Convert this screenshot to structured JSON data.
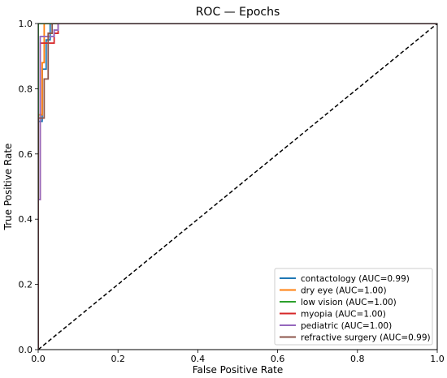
{
  "chart_data": {
    "type": "line",
    "title": "ROC — Epochs",
    "xlabel": "False Positive Rate",
    "ylabel": "True Positive Rate",
    "xlim": [
      0.0,
      1.0
    ],
    "ylim": [
      0.0,
      1.0
    ],
    "xticks": [
      "0.0",
      "0.2",
      "0.4",
      "0.6",
      "0.8",
      "1.0"
    ],
    "yticks": [
      "0.0",
      "0.2",
      "0.4",
      "0.6",
      "0.8",
      "1.0"
    ],
    "grid": false,
    "legend_position": "lower-right",
    "diagonal": {
      "x": [
        0,
        1
      ],
      "y": [
        0,
        1
      ],
      "style": "dashed",
      "color": "#000000"
    },
    "series": [
      {
        "name": "contactology (AUC=0.99)",
        "color": "#1f77b4",
        "x": [
          0,
          0,
          0.01,
          0.01,
          0.02,
          0.02,
          0.03,
          0.03,
          1.0
        ],
        "y": [
          0,
          0.7,
          0.7,
          0.86,
          0.86,
          0.95,
          0.95,
          1.0,
          1.0
        ]
      },
      {
        "name": "dry eye (AUC=1.00)",
        "color": "#ff7f0e",
        "x": [
          0,
          0,
          0.01,
          0.01,
          0.015,
          0.015,
          1.0
        ],
        "y": [
          0,
          0.72,
          0.72,
          0.88,
          0.88,
          1.0,
          1.0
        ]
      },
      {
        "name": "low vision (AUC=1.00)",
        "color": "#2ca02c",
        "x": [
          0,
          0,
          0.04,
          0.04,
          1.0
        ],
        "y": [
          0,
          1.0,
          1.0,
          1.0,
          1.0
        ]
      },
      {
        "name": "myopia (AUC=1.00)",
        "color": "#d62728",
        "x": [
          0,
          0,
          0.005,
          0.005,
          0.04,
          0.04,
          0.05,
          0.05,
          1.0
        ],
        "y": [
          0,
          0.46,
          0.46,
          0.94,
          0.94,
          0.97,
          0.97,
          1.0,
          1.0
        ]
      },
      {
        "name": "pediatric (AUC=1.00)",
        "color": "#9467bd",
        "x": [
          0,
          0,
          0.005,
          0.005,
          0.04,
          0.04,
          0.05,
          0.05,
          1.0
        ],
        "y": [
          0,
          0.46,
          0.46,
          0.96,
          0.96,
          0.98,
          0.98,
          1.0,
          1.0
        ]
      },
      {
        "name": "refractive surgery (AUC=0.99)",
        "color": "#8c564b",
        "x": [
          0,
          0,
          0.015,
          0.015,
          0.025,
          0.025,
          0.035,
          0.035,
          1.0
        ],
        "y": [
          0,
          0.71,
          0.71,
          0.83,
          0.83,
          0.97,
          0.97,
          1.0,
          1.0
        ]
      }
    ]
  }
}
